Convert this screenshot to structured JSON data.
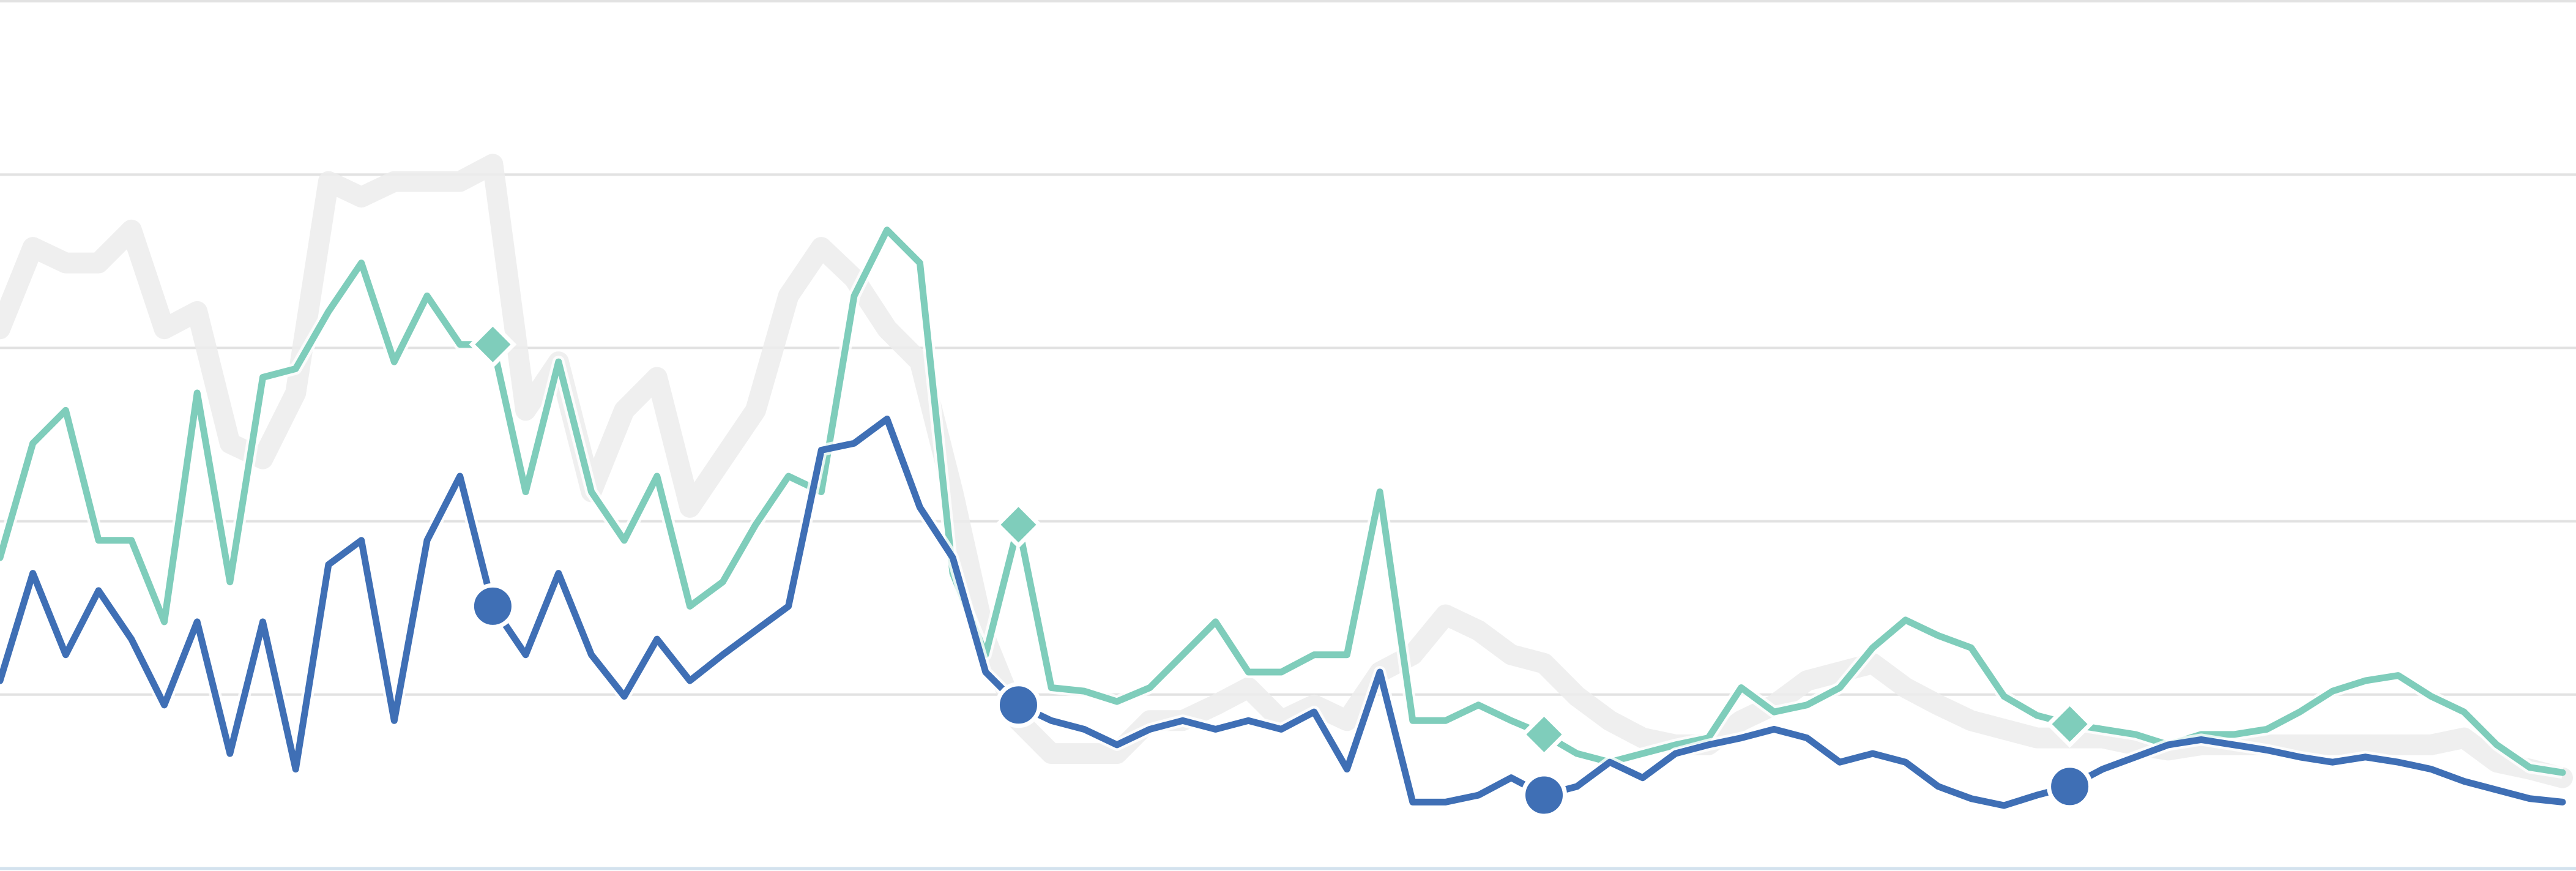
{
  "chart_data": {
    "type": "line",
    "x": [
      0,
      1,
      2,
      3,
      4,
      5,
      6,
      7,
      8,
      9,
      10,
      11,
      12,
      13,
      14,
      15,
      16,
      17,
      18,
      19,
      20,
      21,
      22,
      23,
      24,
      25,
      26,
      27,
      28,
      29,
      30,
      31,
      32,
      33,
      34,
      35,
      36,
      37,
      38,
      39,
      40,
      41,
      42,
      43,
      44,
      45,
      46,
      47,
      48,
      49,
      50,
      51,
      52,
      53,
      54,
      55,
      56,
      57,
      58,
      59,
      60,
      61,
      62,
      63,
      64,
      65,
      66,
      67,
      68,
      69,
      70,
      71,
      72,
      73,
      74,
      75,
      76,
      77,
      78
    ],
    "xlim": [
      0,
      78
    ],
    "ylim": [
      0,
      5
    ],
    "yticks": [
      1,
      2,
      3,
      4,
      5
    ],
    "grid": true,
    "marker_every": 16,
    "marker_start": 15,
    "series": [
      {
        "color": "#ececec",
        "width": "wide",
        "values": [
          3.11,
          3.58,
          3.49,
          3.49,
          3.68,
          3.11,
          3.21,
          2.45,
          2.36,
          2.74,
          3.96,
          3.87,
          3.96,
          3.96,
          3.96,
          4.06,
          2.64,
          2.92,
          2.17,
          2.64,
          2.83,
          2.08,
          2.36,
          2.64,
          3.3,
          3.58,
          3.4,
          3.11,
          2.92,
          2.17,
          1.32,
          0.85,
          0.66,
          0.66,
          0.66,
          0.85,
          0.85,
          0.94,
          1.04,
          0.85,
          0.94,
          0.85,
          1.13,
          1.23,
          1.46,
          1.37,
          1.23,
          1.18,
          0.99,
          0.85,
          0.75,
          0.71,
          0.71,
          0.85,
          0.94,
          1.08,
          1.13,
          1.18,
          1.04,
          0.94,
          0.85,
          0.8,
          0.75,
          0.75,
          0.75,
          0.71,
          0.68,
          0.71,
          0.71,
          0.71,
          0.71,
          0.71,
          0.71,
          0.71,
          0.71,
          0.75,
          0.61,
          0.57,
          0.52
        ]
      },
      {
        "color": "#7fcdbb",
        "marker": "diamond",
        "values": [
          1.79,
          2.45,
          2.64,
          1.89,
          1.89,
          1.42,
          2.74,
          1.65,
          2.83,
          2.88,
          3.21,
          3.49,
          2.92,
          3.3,
          3.02,
          3.02,
          2.17,
          2.92,
          2.17,
          1.89,
          2.26,
          1.51,
          1.65,
          1.98,
          2.26,
          2.17,
          3.3,
          3.68,
          3.49,
          1.7,
          1.23,
          1.98,
          1.04,
          1.02,
          0.96,
          1.04,
          1.23,
          1.42,
          1.13,
          1.13,
          1.23,
          1.23,
          2.17,
          0.85,
          0.85,
          0.94,
          0.85,
          0.77,
          0.66,
          0.61,
          0.66,
          0.71,
          0.75,
          1.04,
          0.9,
          0.94,
          1.04,
          1.27,
          1.43,
          1.34,
          1.27,
          0.99,
          0.88,
          0.83,
          0.8,
          0.77,
          0.71,
          0.77,
          0.77,
          0.8,
          0.9,
          1.02,
          1.08,
          1.11,
          0.99,
          0.9,
          0.71,
          0.58,
          0.55
        ]
      },
      {
        "color": "#3f6fb5",
        "marker": "circle",
        "values": [
          1.08,
          1.7,
          1.23,
          1.6,
          1.32,
          0.94,
          1.42,
          0.66,
          1.42,
          0.57,
          1.75,
          1.89,
          0.85,
          1.89,
          2.26,
          1.51,
          1.23,
          1.7,
          1.23,
          0.99,
          1.32,
          1.08,
          1.23,
          1.37,
          1.51,
          2.41,
          2.45,
          2.59,
          2.08,
          1.79,
          1.13,
          0.94,
          0.85,
          0.8,
          0.71,
          0.8,
          0.85,
          0.8,
          0.85,
          0.8,
          0.9,
          0.57,
          1.13,
          0.38,
          0.38,
          0.42,
          0.52,
          0.42,
          0.47,
          0.61,
          0.52,
          0.66,
          0.71,
          0.75,
          0.8,
          0.75,
          0.61,
          0.66,
          0.61,
          0.47,
          0.4,
          0.36,
          0.42,
          0.47,
          0.57,
          0.64,
          0.71,
          0.74,
          0.71,
          0.68,
          0.64,
          0.61,
          0.64,
          0.61,
          0.57,
          0.5,
          0.45,
          0.4,
          0.38
        ]
      }
    ]
  }
}
